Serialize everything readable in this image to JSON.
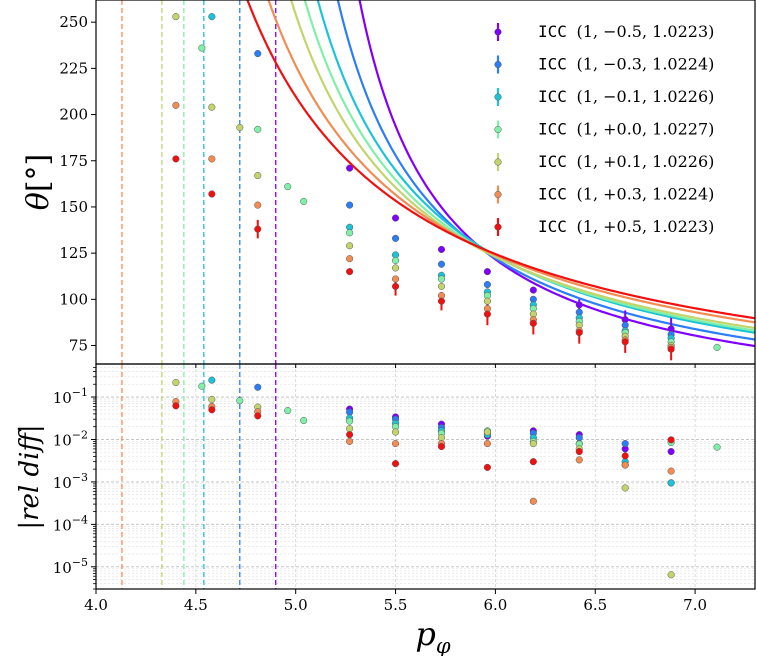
{
  "chart_data": [
    {
      "type": "line",
      "panel": "top",
      "xlabel": "p_φ",
      "ylabel": "θ[°]",
      "xlim": [
        4.0,
        7.3
      ],
      "ylim": [
        65,
        262
      ],
      "x_ticks": [
        4.0,
        4.5,
        5.0,
        5.5,
        6.0,
        6.5,
        7.0
      ],
      "x_tick_labels": [
        "4.0",
        "4.5",
        "5.0",
        "5.5",
        "6.0",
        "6.5",
        "7.0"
      ],
      "y_ticks": [
        75,
        100,
        125,
        150,
        175,
        200,
        225,
        250
      ],
      "y_tick_labels": [
        "75",
        "100",
        "125",
        "150",
        "175",
        "200",
        "225",
        "250"
      ],
      "legend_position": "top-right",
      "series": [
        {
          "name": "ICC",
          "params": "(1, −0.5, 1.0223)",
          "color": "#8000ff",
          "asymptote": 4.9,
          "curve_coef": 95.3,
          "x": [
            5.27,
            5.5,
            5.73,
            5.96,
            6.19,
            6.42,
            6.65,
            6.88
          ],
          "y": [
            171,
            144,
            127,
            115,
            105,
            97,
            89,
            84
          ],
          "err": [
            0,
            0,
            0,
            0,
            0,
            3,
            5,
            6
          ]
        },
        {
          "name": "ICC",
          "params": "(1, −0.3, 1.0224)",
          "color": "#2c7ef7",
          "asymptote": 4.72,
          "curve_coef": 111.5,
          "x": [
            4.81,
            5.27,
            5.5,
            5.73,
            5.96,
            6.19,
            6.42,
            6.65,
            6.88
          ],
          "y": [
            233,
            151,
            133,
            119,
            108,
            100,
            93,
            86,
            81
          ],
          "err": [
            0,
            0,
            0,
            0,
            0,
            0,
            0,
            0,
            0
          ]
        },
        {
          "name": "ICC",
          "params": "(1, −0.1, 1.0226)",
          "color": "#1cc4d8",
          "asymptote": 4.54,
          "curve_coef": 129.5,
          "x": [
            4.58,
            5.27,
            5.5,
            5.73,
            5.96,
            6.19,
            6.42,
            6.65,
            6.88
          ],
          "y": [
            253,
            139,
            124,
            113,
            104,
            97,
            90,
            83,
            79
          ],
          "err": [
            0,
            0,
            0,
            0,
            0,
            0,
            0,
            0,
            0
          ]
        },
        {
          "name": "ICC",
          "params": "(1, +0.0, 1.0227)",
          "color": "#7ff0a8",
          "asymptote": 4.44,
          "curve_coef": 137.5,
          "x": [
            4.53,
            4.81,
            4.96,
            5.04,
            5.27,
            5.5,
            5.73,
            5.96,
            6.19,
            6.42,
            6.65,
            6.88,
            7.11
          ],
          "y": [
            236,
            192,
            161,
            153,
            136,
            121,
            111,
            102,
            95,
            88,
            82,
            77,
            74
          ],
          "err": [
            0,
            0,
            0,
            0,
            0,
            0,
            0,
            0,
            0,
            0,
            0,
            0,
            0
          ]
        },
        {
          "name": "ICC",
          "params": "(1, +0.1, 1.0226)",
          "color": "#c4d46c",
          "asymptote": 4.33,
          "curve_coef": 146.9,
          "x": [
            4.4,
            4.58,
            4.72,
            4.81,
            5.27,
            5.5,
            5.73,
            5.96,
            6.19,
            6.42,
            6.65,
            6.88
          ],
          "y": [
            253,
            204,
            193,
            167,
            129,
            117,
            107,
            99,
            92,
            86,
            80,
            75
          ],
          "err": [
            0,
            0,
            0,
            0,
            0,
            0,
            0,
            0,
            0,
            0,
            0,
            0
          ]
        },
        {
          "name": "ICC",
          "params": "(1, +0.3, 1.0224)",
          "color": "#f28c52",
          "asymptote": 4.13,
          "curve_coef": 166.6,
          "x": [
            4.4,
            4.58,
            4.81,
            5.27,
            5.5,
            5.73,
            5.96,
            6.19,
            6.42,
            6.65,
            6.88
          ],
          "y": [
            205,
            176,
            151,
            122,
            111,
            102,
            95,
            89,
            83,
            78,
            74
          ],
          "err": [
            0,
            0,
            0,
            0,
            0,
            0,
            0,
            0,
            0,
            0,
            0
          ]
        },
        {
          "name": "ICC",
          "params": "(1, +0.5, 1.0223)",
          "color": "#f01010",
          "asymptote": 3.95,
          "curve_coef": 183.5,
          "x": [
            4.4,
            4.58,
            4.81,
            5.27,
            5.5,
            5.73,
            5.96,
            6.19,
            6.42,
            6.65,
            6.88
          ],
          "y": [
            176,
            157,
            138,
            115,
            107,
            99,
            92,
            87,
            82,
            77,
            73
          ],
          "err": [
            0,
            0,
            5,
            0,
            5,
            5,
            6,
            6,
            6,
            6,
            6
          ]
        }
      ]
    },
    {
      "type": "scatter",
      "panel": "bottom",
      "ylabel": "|rel diff|",
      "yscale": "log",
      "xlim": [
        4.0,
        7.3
      ],
      "ylim": [
        3e-06,
        0.6
      ],
      "grid": true,
      "y_ticks": [
        1e-05,
        0.0001,
        0.001,
        0.01,
        0.1
      ],
      "y_tick_labels": [
        {
          "base": "10",
          "exp": "−5"
        },
        {
          "base": "10",
          "exp": "−4"
        },
        {
          "base": "10",
          "exp": "−3"
        },
        {
          "base": "10",
          "exp": "−2"
        },
        {
          "base": "10",
          "exp": "−1"
        }
      ],
      "series": [
        {
          "color": "#8000ff",
          "x": [
            5.27,
            5.5,
            5.73,
            5.96,
            6.19,
            6.42,
            6.65,
            6.88
          ],
          "y": [
            0.052,
            0.034,
            0.023,
            0.012,
            0.016,
            0.013,
            0.006,
            0.0052
          ]
        },
        {
          "color": "#2c7ef7",
          "x": [
            4.81,
            5.27,
            5.5,
            5.73,
            5.96,
            6.19,
            6.42,
            6.65,
            6.88
          ],
          "y": [
            0.17,
            0.044,
            0.03,
            0.019,
            0.014,
            0.014,
            0.011,
            0.008,
            0.00095
          ]
        },
        {
          "color": "#1cc4d8",
          "x": [
            4.58,
            5.27,
            5.5,
            5.73,
            5.96,
            6.19,
            6.42,
            6.65,
            6.88
          ],
          "y": [
            0.25,
            0.032,
            0.024,
            0.016,
            0.013,
            0.011,
            0.008,
            0.003,
            0.00095
          ]
        },
        {
          "color": "#7ff0a8",
          "x": [
            4.53,
            4.72,
            4.96,
            5.04,
            5.27,
            5.5,
            5.73,
            5.96,
            6.19,
            6.42,
            6.65,
            6.88,
            7.11
          ],
          "y": [
            0.18,
            0.082,
            0.048,
            0.028,
            0.027,
            0.02,
            0.014,
            0.016,
            0.009,
            0.0078,
            0.0025,
            0.0085,
            0.0066
          ]
        },
        {
          "color": "#c4d46c",
          "x": [
            4.4,
            4.58,
            4.81,
            5.27,
            5.5,
            5.73,
            5.96,
            6.19,
            6.42,
            6.65,
            6.88
          ],
          "y": [
            0.22,
            0.088,
            0.058,
            0.018,
            0.015,
            0.011,
            0.015,
            0.008,
            0.006,
            0.00072,
            6.5e-06
          ]
        },
        {
          "color": "#f28c52",
          "x": [
            4.4,
            4.58,
            4.81,
            5.27,
            5.5,
            5.73,
            5.96,
            6.19,
            6.42,
            6.65,
            6.88
          ],
          "y": [
            0.078,
            0.06,
            0.045,
            0.009,
            0.008,
            0.008,
            0.008,
            0.00035,
            0.0033,
            0.0025,
            0.0018
          ]
        },
        {
          "color": "#f01010",
          "x": [
            4.4,
            4.58,
            4.81,
            5.27,
            5.5,
            5.73,
            5.96,
            6.19,
            6.42,
            6.65,
            6.88
          ],
          "y": [
            0.062,
            0.05,
            0.036,
            0.013,
            0.0027,
            0.0068,
            0.0022,
            0.003,
            0.0052,
            0.0041,
            0.0098
          ]
        }
      ]
    }
  ]
}
